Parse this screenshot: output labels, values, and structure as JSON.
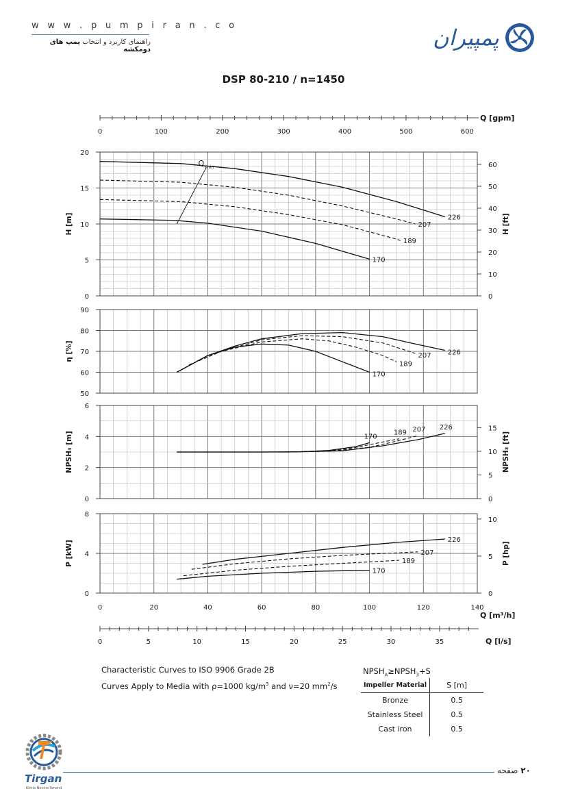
{
  "header": {
    "site_url": "w w w . p u m p i r a n . c o",
    "tagline_plain": "راهنمای کاربرد و انتخاب ",
    "tagline_bold": "پمپ های دومکشه",
    "logo_text": "پمپیران",
    "logo_icon": "pump-impeller-icon"
  },
  "chart_data": {
    "type": "line",
    "title": "DSP 80-210 / n=1450",
    "x": {
      "label_m3h": "Q [m³/h]",
      "ticks_m3h": [
        0,
        20,
        40,
        60,
        80,
        100,
        120,
        140
      ],
      "range_m3h": [
        0,
        140
      ],
      "label_gpm": "Q [gpm]",
      "ticks_gpm": [
        0,
        100,
        200,
        300,
        400,
        500,
        600
      ],
      "label_ls": "Q [l/s]",
      "ticks_ls": [
        0,
        5,
        10,
        15,
        20,
        25,
        30,
        35
      ]
    },
    "impeller_diameters": [
      "170",
      "189",
      "207",
      "226"
    ],
    "panels": {
      "head": {
        "ylabel": "H [m]",
        "ylim": [
          0,
          20
        ],
        "yticks": [
          0,
          5,
          10,
          15,
          20
        ],
        "ylabel_right": "H [ft]",
        "yticks_right": [
          0,
          10,
          20,
          30,
          40,
          50,
          60
        ],
        "qmin_label": "Q",
        "qmin_sub": "min",
        "qmin_line": [
          [
            28.5,
            10.0
          ],
          [
            39.5,
            17.9
          ]
        ],
        "series": [
          {
            "name": "170",
            "style": "solid",
            "points": [
              [
                0,
                10.7
              ],
              [
                28,
                10.5
              ],
              [
                40,
                10.1
              ],
              [
                60,
                9.0
              ],
              [
                80,
                7.3
              ],
              [
                100,
                5.1
              ]
            ]
          },
          {
            "name": "189",
            "style": "dashed",
            "points": [
              [
                0,
                13.4
              ],
              [
                30,
                13.1
              ],
              [
                50,
                12.4
              ],
              [
                70,
                11.3
              ],
              [
                90,
                9.9
              ],
              [
                110,
                7.9
              ],
              [
                111.5,
                7.7
              ]
            ]
          },
          {
            "name": "207",
            "style": "dashed",
            "points": [
              [
                0,
                16.1
              ],
              [
                30,
                15.8
              ],
              [
                50,
                15.1
              ],
              [
                70,
                14.0
              ],
              [
                90,
                12.5
              ],
              [
                110,
                10.7
              ],
              [
                117,
                10.0
              ]
            ]
          },
          {
            "name": "226",
            "style": "solid",
            "points": [
              [
                0,
                18.7
              ],
              [
                30,
                18.4
              ],
              [
                50,
                17.7
              ],
              [
                70,
                16.6
              ],
              [
                90,
                15.1
              ],
              [
                110,
                13.1
              ],
              [
                128,
                11.0
              ]
            ]
          }
        ]
      },
      "efficiency": {
        "ylabel": "η [%]",
        "ylim": [
          50,
          90
        ],
        "yticks": [
          50,
          60,
          70,
          80,
          90
        ],
        "series": [
          {
            "name": "170",
            "style": "solid",
            "points": [
              [
                28.5,
                60
              ],
              [
                40,
                68
              ],
              [
                50,
                72
              ],
              [
                60,
                73.5
              ],
              [
                70,
                73
              ],
              [
                80,
                70
              ],
              [
                90,
                65
              ],
              [
                100,
                60
              ]
            ]
          },
          {
            "name": "189",
            "style": "dashed",
            "points": [
              [
                33,
                63.5
              ],
              [
                45,
                70
              ],
              [
                60,
                74.5
              ],
              [
                75,
                76
              ],
              [
                85,
                75
              ],
              [
                95,
                72
              ],
              [
                105,
                68
              ],
              [
                110,
                65
              ]
            ]
          },
          {
            "name": "207",
            "style": "dashed",
            "points": [
              [
                33,
                63.5
              ],
              [
                45,
                70
              ],
              [
                60,
                75.5
              ],
              [
                75,
                77.5
              ],
              [
                90,
                77
              ],
              [
                105,
                74
              ],
              [
                117,
                69
              ]
            ]
          },
          {
            "name": "226",
            "style": "solid",
            "points": [
              [
                28.5,
                60
              ],
              [
                40,
                68
              ],
              [
                50,
                72.5
              ],
              [
                60,
                76
              ],
              [
                75,
                78.5
              ],
              [
                90,
                79
              ],
              [
                105,
                77
              ],
              [
                117,
                73.5
              ],
              [
                128,
                70.5
              ]
            ]
          }
        ]
      },
      "npsh": {
        "ylabel": "NPSH₃ [m]",
        "ylim": [
          0,
          6
        ],
        "yticks": [
          0,
          2,
          4,
          6
        ],
        "ylabel_right": "NPSH₃ [ft]",
        "yticks_right": [
          0,
          5,
          10,
          15
        ],
        "series": [
          {
            "name": "170",
            "style": "solid",
            "points": [
              [
                28.5,
                3.0
              ],
              [
                60,
                3.0
              ],
              [
                75,
                3.02
              ],
              [
                85,
                3.1
              ],
              [
                95,
                3.35
              ],
              [
                100,
                3.6
              ]
            ]
          },
          {
            "name": "189",
            "style": "dashed",
            "points": [
              [
                70,
                3.0
              ],
              [
                85,
                3.08
              ],
              [
                95,
                3.3
              ],
              [
                105,
                3.65
              ],
              [
                111,
                3.85
              ]
            ]
          },
          {
            "name": "207",
            "style": "dashed",
            "points": [
              [
                70,
                3.0
              ],
              [
                85,
                3.05
              ],
              [
                100,
                3.3
              ],
              [
                110,
                3.7
              ],
              [
                118,
                4.05
              ]
            ]
          },
          {
            "name": "226",
            "style": "solid",
            "points": [
              [
                28.5,
                3.0
              ],
              [
                70,
                3.0
              ],
              [
                90,
                3.08
              ],
              [
                105,
                3.4
              ],
              [
                118,
                3.8
              ],
              [
                128,
                4.2
              ]
            ]
          }
        ]
      },
      "power": {
        "ylabel": "P [kW]",
        "ylim": [
          0,
          8
        ],
        "yticks": [
          0,
          4,
          8
        ],
        "ylabel_right": "P [hp]",
        "yticks_right": [
          0,
          5,
          10
        ],
        "series": [
          {
            "name": "170",
            "style": "solid",
            "points": [
              [
                28.5,
                1.4
              ],
              [
                40,
                1.7
              ],
              [
                60,
                2.0
              ],
              [
                80,
                2.2
              ],
              [
                100,
                2.3
              ]
            ]
          },
          {
            "name": "189",
            "style": "dashed",
            "points": [
              [
                31,
                1.75
              ],
              [
                50,
                2.3
              ],
              [
                70,
                2.7
              ],
              [
                90,
                3.0
              ],
              [
                111,
                3.3
              ]
            ]
          },
          {
            "name": "207",
            "style": "dashed",
            "points": [
              [
                34,
                2.4
              ],
              [
                50,
                2.95
              ],
              [
                70,
                3.45
              ],
              [
                90,
                3.8
              ],
              [
                110,
                4.05
              ],
              [
                118,
                4.15
              ]
            ]
          },
          {
            "name": "226",
            "style": "solid",
            "points": [
              [
                38,
                2.9
              ],
              [
                50,
                3.4
              ],
              [
                70,
                4.0
              ],
              [
                90,
                4.6
              ],
              [
                110,
                5.1
              ],
              [
                128,
                5.45
              ]
            ]
          }
        ]
      }
    }
  },
  "notes": {
    "line1": "Characteristic Curves to ISO 9906 Grade 2B",
    "line2_prefix": "Curves Apply to Media with  ρ=1000 kg/m",
    "line2_sup1": "3",
    "line2_mid": " and ν=20 mm",
    "line2_sup2": "2",
    "line2_suffix": "/s"
  },
  "npsh_margin": {
    "formula_pre": "NPSH",
    "formula_sub_a": "A",
    "formula_mid": "≥NPSH",
    "formula_sub_3": "3",
    "formula_post": "+S",
    "col_material": "Impeller Material",
    "col_s": "S [m]",
    "rows": [
      {
        "material": "Bronze",
        "s": "0.5"
      },
      {
        "material": "Stainless Steel",
        "s": "0.5"
      },
      {
        "material": "Cast iron",
        "s": "0.5"
      }
    ]
  },
  "footer": {
    "page_word": "صفحه",
    "page_number": "۲۰",
    "brand": "Tirgan",
    "brand_sub": "Kimia Novine Amand",
    "brand_icon": "tirgan-gear-icon"
  }
}
